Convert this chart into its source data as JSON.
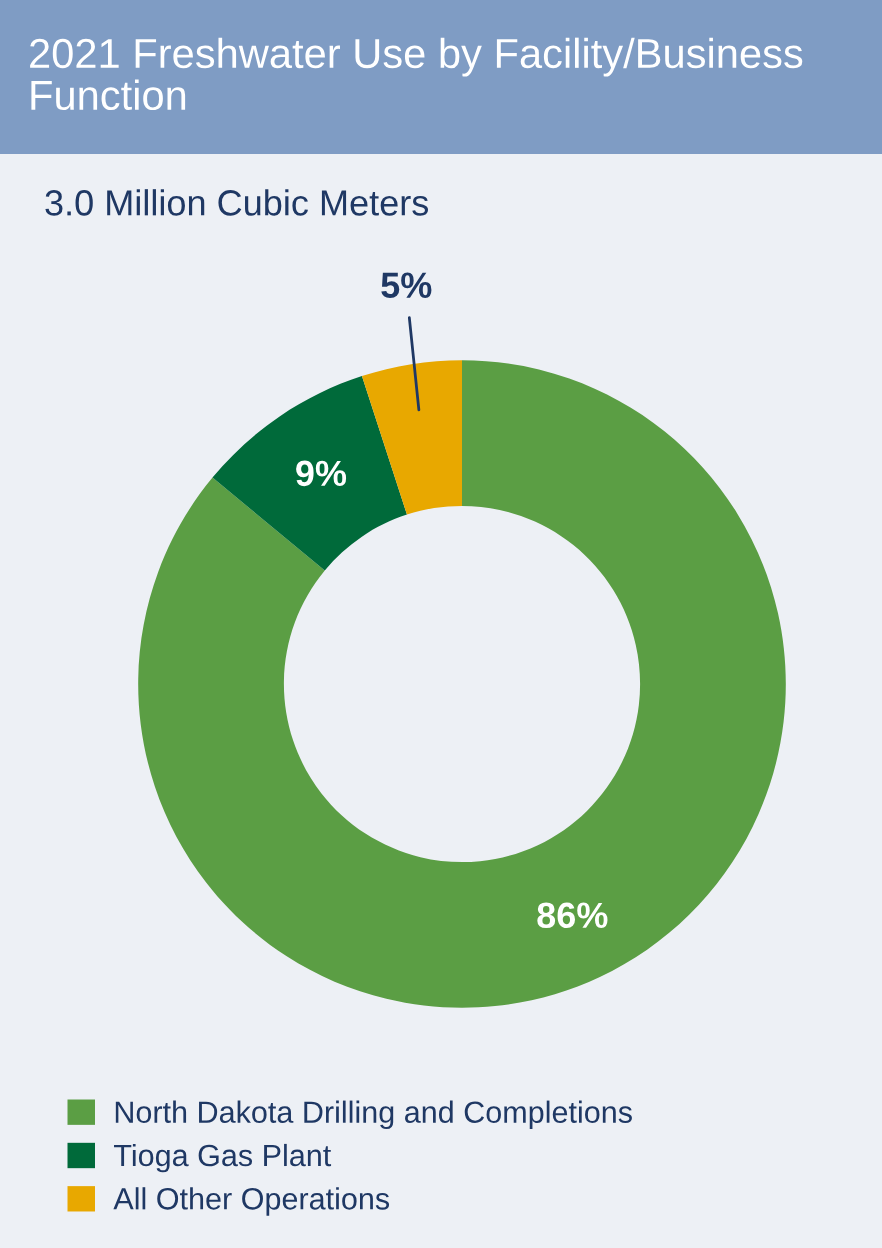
{
  "chart_data": {
    "type": "donut",
    "title": "2021 Freshwater Use by Facility/Business Function",
    "subtitle": "3.0 Million Cubic Meters",
    "categories": [
      "North Dakota Drilling and Completions",
      "Tioga Gas Plant",
      "All Other Operations"
    ],
    "values": [
      86,
      9,
      5
    ],
    "colors": [
      "#5b9e44",
      "#006a3a",
      "#e8a800"
    ],
    "value_labels": [
      "86%",
      "9%",
      "5%"
    ],
    "legend": "bottom"
  }
}
